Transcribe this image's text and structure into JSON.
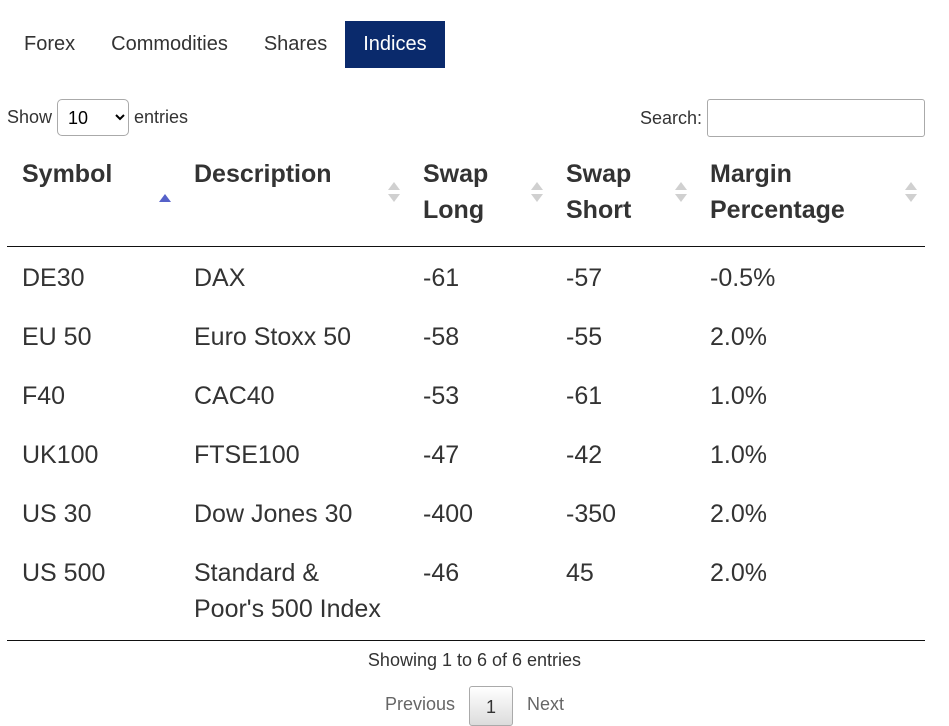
{
  "tabs": [
    {
      "label": "Forex",
      "active": false
    },
    {
      "label": "Commodities",
      "active": false
    },
    {
      "label": "Shares",
      "active": false
    },
    {
      "label": "Indices",
      "active": true
    }
  ],
  "length_control": {
    "prefix": "Show",
    "selected": "10",
    "suffix": "entries"
  },
  "search": {
    "label": "Search:",
    "value": "",
    "placeholder": ""
  },
  "columns": [
    {
      "label": "Symbol",
      "sort": "ascending"
    },
    {
      "label": "Description",
      "sort": "none"
    },
    {
      "label": "Swap Long",
      "sort": "none"
    },
    {
      "label": "Swap Short",
      "sort": "none"
    },
    {
      "label": "Margin Percentage",
      "sort": "none"
    }
  ],
  "rows": [
    [
      "DE30",
      "DAX",
      "-61",
      "-57",
      "-0.5%"
    ],
    [
      "EU 50",
      "Euro Stoxx 50",
      "-58",
      "-55",
      "2.0%"
    ],
    [
      "F40",
      "CAC40",
      "-53",
      "-61",
      "1.0%"
    ],
    [
      "UK100",
      "FTSE100",
      "-47",
      "-42",
      "1.0%"
    ],
    [
      "US 30",
      "Dow Jones 30",
      "-400",
      "-350",
      "2.0%"
    ],
    [
      "US 500",
      "Standard & Poor's 500 Index",
      "-46",
      "45",
      "2.0%"
    ]
  ],
  "info": "Showing 1 to 6 of 6 entries",
  "pagination": {
    "previous": "Previous",
    "current_page": "1",
    "next": "Next"
  },
  "colors": {
    "active_tab": "#0a2a6c",
    "sort_active": "#5561c9",
    "sort_inactive": "#d0d0d0"
  }
}
